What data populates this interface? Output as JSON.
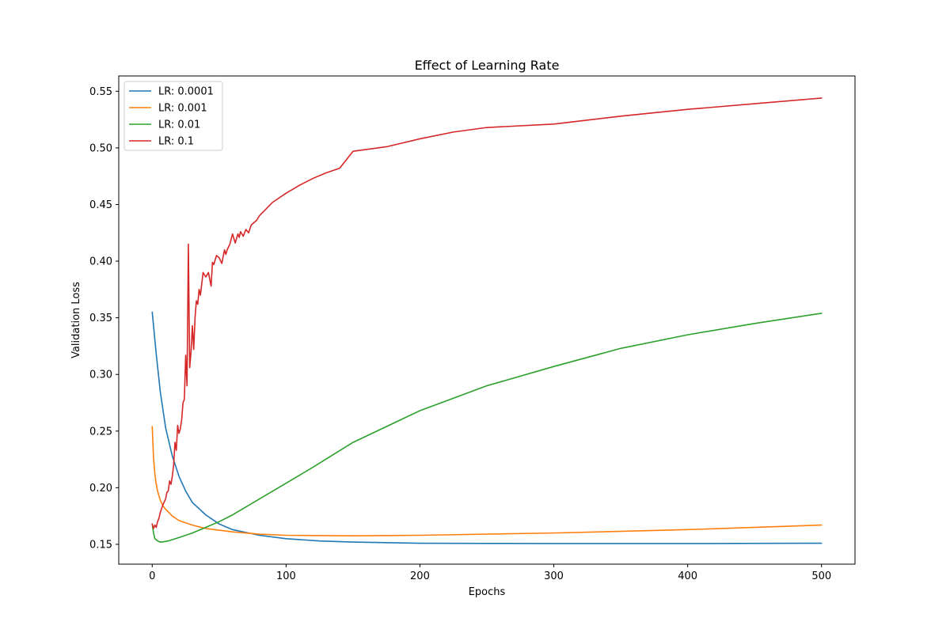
{
  "chart_data": {
    "type": "line",
    "title": "Effect of Learning Rate",
    "xlabel": "Epochs",
    "ylabel": "Validation Loss",
    "xlim": [
      -25,
      525
    ],
    "ylim": [
      0.1325,
      0.5635
    ],
    "xticks": [
      0,
      100,
      200,
      300,
      400,
      500
    ],
    "xtick_labels": [
      "0",
      "100",
      "200",
      "300",
      "400",
      "500"
    ],
    "yticks": [
      0.15,
      0.2,
      0.25,
      0.3,
      0.35,
      0.4,
      0.45,
      0.5,
      0.55
    ],
    "ytick_labels": [
      "0.15",
      "0.20",
      "0.25",
      "0.30",
      "0.35",
      "0.40",
      "0.45",
      "0.50",
      "0.55"
    ],
    "grid": false,
    "legend_position": "upper-left",
    "series": [
      {
        "name": "LR: 0.0001",
        "color": "#1f77b4",
        "x": [
          0,
          3,
          6,
          10,
          15,
          20,
          25,
          30,
          40,
          50,
          60,
          80,
          100,
          125,
          150,
          200,
          250,
          300,
          400,
          500
        ],
        "values": [
          0.355,
          0.318,
          0.285,
          0.253,
          0.228,
          0.21,
          0.197,
          0.187,
          0.176,
          0.168,
          0.163,
          0.158,
          0.155,
          0.153,
          0.152,
          0.151,
          0.1508,
          0.1507,
          0.1507,
          0.151
        ]
      },
      {
        "name": "LR: 0.001",
        "color": "#ff7f0e",
        "x": [
          0,
          1,
          2,
          3,
          4,
          6,
          8,
          10,
          15,
          20,
          30,
          40,
          60,
          80,
          100,
          150,
          200,
          300,
          400,
          500
        ],
        "values": [
          0.254,
          0.226,
          0.212,
          0.203,
          0.197,
          0.189,
          0.184,
          0.181,
          0.175,
          0.171,
          0.167,
          0.164,
          0.161,
          0.159,
          0.158,
          0.1575,
          0.158,
          0.16,
          0.163,
          0.167
        ]
      },
      {
        "name": "LR: 0.01",
        "color": "#2ca02c",
        "x": [
          0,
          1,
          2,
          4,
          6,
          8,
          12,
          20,
          30,
          40,
          50,
          60,
          80,
          100,
          120,
          150,
          200,
          250,
          300,
          350,
          400,
          450,
          500
        ],
        "values": [
          0.168,
          0.16,
          0.155,
          0.153,
          0.152,
          0.1522,
          0.153,
          0.156,
          0.16,
          0.165,
          0.17,
          0.176,
          0.19,
          0.204,
          0.218,
          0.24,
          0.268,
          0.29,
          0.307,
          0.323,
          0.335,
          0.345,
          0.354
        ]
      },
      {
        "name": "LR: 0.1",
        "color": "#d62728",
        "x": [
          0,
          1,
          2,
          3,
          4,
          5,
          6,
          8,
          10,
          11,
          12,
          13,
          14,
          15,
          16,
          17,
          18,
          19,
          20,
          21,
          22,
          23,
          24,
          25,
          26,
          27,
          28,
          29,
          30,
          31,
          32,
          33,
          34,
          35,
          36,
          37,
          38,
          40,
          42,
          44,
          45,
          46,
          48,
          50,
          52,
          54,
          55,
          56,
          58,
          60,
          62,
          64,
          65,
          66,
          68,
          70,
          72,
          74,
          76,
          78,
          80,
          85,
          90,
          95,
          100,
          110,
          120,
          130,
          140,
          150,
          175,
          200,
          225,
          250,
          300,
          350,
          400,
          450,
          500
        ],
        "values": [
          0.168,
          0.164,
          0.167,
          0.165,
          0.17,
          0.173,
          0.178,
          0.185,
          0.19,
          0.196,
          0.197,
          0.206,
          0.203,
          0.21,
          0.22,
          0.24,
          0.233,
          0.255,
          0.248,
          0.252,
          0.26,
          0.275,
          0.278,
          0.317,
          0.29,
          0.415,
          0.306,
          0.32,
          0.343,
          0.322,
          0.35,
          0.365,
          0.362,
          0.375,
          0.37,
          0.38,
          0.39,
          0.386,
          0.39,
          0.378,
          0.399,
          0.397,
          0.405,
          0.403,
          0.398,
          0.41,
          0.406,
          0.41,
          0.415,
          0.424,
          0.416,
          0.424,
          0.421,
          0.426,
          0.422,
          0.428,
          0.425,
          0.432,
          0.434,
          0.436,
          0.44,
          0.446,
          0.452,
          0.456,
          0.46,
          0.467,
          0.473,
          0.478,
          0.482,
          0.497,
          0.501,
          0.508,
          0.514,
          0.518,
          0.521,
          0.528,
          0.534,
          0.539,
          0.544
        ]
      }
    ]
  }
}
